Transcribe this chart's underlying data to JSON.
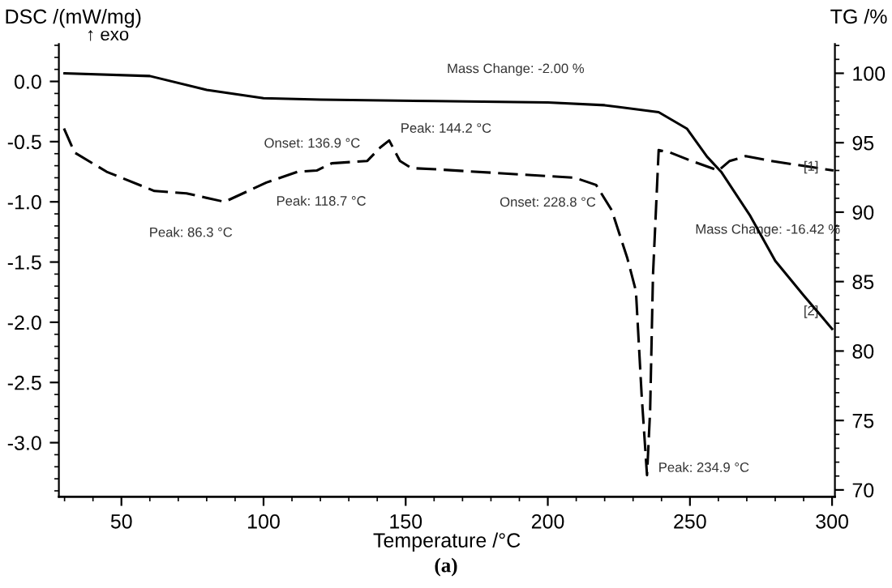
{
  "chart_data": {
    "type": "line",
    "xlabel": "Temperature /°C",
    "ylabel": "DSC /(mW/mg)",
    "y2label": "TG /%",
    "xlim": [
      28,
      301
    ],
    "xticks": [
      50,
      100,
      150,
      200,
      250,
      300
    ],
    "ylim": [
      -3.45,
      0.31
    ],
    "yticks": [
      {
        "value": 0,
        "label": "0.0"
      },
      {
        "value": -0.5,
        "label": "-0.5"
      },
      {
        "value": -1,
        "label": "-1.0"
      },
      {
        "value": -1.5,
        "label": "-1.5"
      },
      {
        "value": -2,
        "label": "-2.0"
      },
      {
        "value": -2.5,
        "label": "-2.5"
      },
      {
        "value": -3,
        "label": "-3.0"
      }
    ],
    "y2lim": [
      69.5,
      102.1
    ],
    "y2ticks": [
      70,
      75,
      80,
      85,
      90,
      95,
      100
    ],
    "grid": false,
    "legend": false,
    "series": [
      {
        "line_style": "dashed",
        "color": "#000000",
        "x": [
          29.8,
          33.5,
          44.8,
          61.6,
          72.9,
          86.3,
          101,
          112,
          118.7,
          124,
          136.5,
          141,
          144.2,
          148,
          152,
          160.8,
          209.6,
          217,
          222.5,
          228,
          231,
          233,
          234.9,
          236,
          237,
          239,
          243,
          250.5,
          260,
          264,
          267,
          269.6,
          278.6,
          300.5
        ],
        "values": [
          -0.39,
          -0.59,
          -0.75,
          -0.91,
          -0.93,
          -1.0,
          -0.84,
          -0.75,
          -0.74,
          -0.68,
          -0.66,
          -0.55,
          -0.49,
          -0.66,
          -0.72,
          -0.73,
          -0.8,
          -0.86,
          -1.07,
          -1.47,
          -1.74,
          -2.6,
          -3.27,
          -2.73,
          -1.61,
          -0.57,
          -0.59,
          -0.66,
          -0.74,
          -0.66,
          -0.64,
          -0.62,
          -0.66,
          -0.74
        ]
      },
      {
        "line_style": "solid",
        "color": "#000000",
        "axis": "y2",
        "x": [
          30,
          60,
          80,
          100,
          120,
          160,
          200,
          220,
          239,
          249,
          256,
          261,
          271,
          280,
          290,
          300
        ],
        "values": [
          100,
          99.8,
          98.8,
          98.2,
          98.1,
          98.0,
          97.9,
          97.7,
          97.2,
          96.0,
          94.0,
          92.9,
          89.8,
          86.5,
          84.0,
          81.6
        ]
      }
    ],
    "annotations": [
      "↑ exo",
      {
        "text": "Peak: 86.3 °C",
        "x": 86.3,
        "y": -1.0
      },
      {
        "text": "Peak: 118.7 °C",
        "x": 118.7,
        "y": -0.74
      },
      {
        "text": "Onset: 136.9 °C",
        "x": 136.9,
        "y": -0.67
      },
      {
        "text": "Peak: 144.2 °C",
        "x": 144.2,
        "y": -0.49
      },
      "Onset: 228.8 °C",
      {
        "text": "Peak: 234.9 °C",
        "x": 234.9,
        "y": -3.27
      },
      "Mass Change: -2.00 %",
      "Mass Change: -16.42 %",
      {
        "text": "[1]",
        "x": 300,
        "y": -0.75
      },
      {
        "text": "[2]",
        "x": 300,
        "y": -1.95
      },
      "(a)"
    ]
  }
}
